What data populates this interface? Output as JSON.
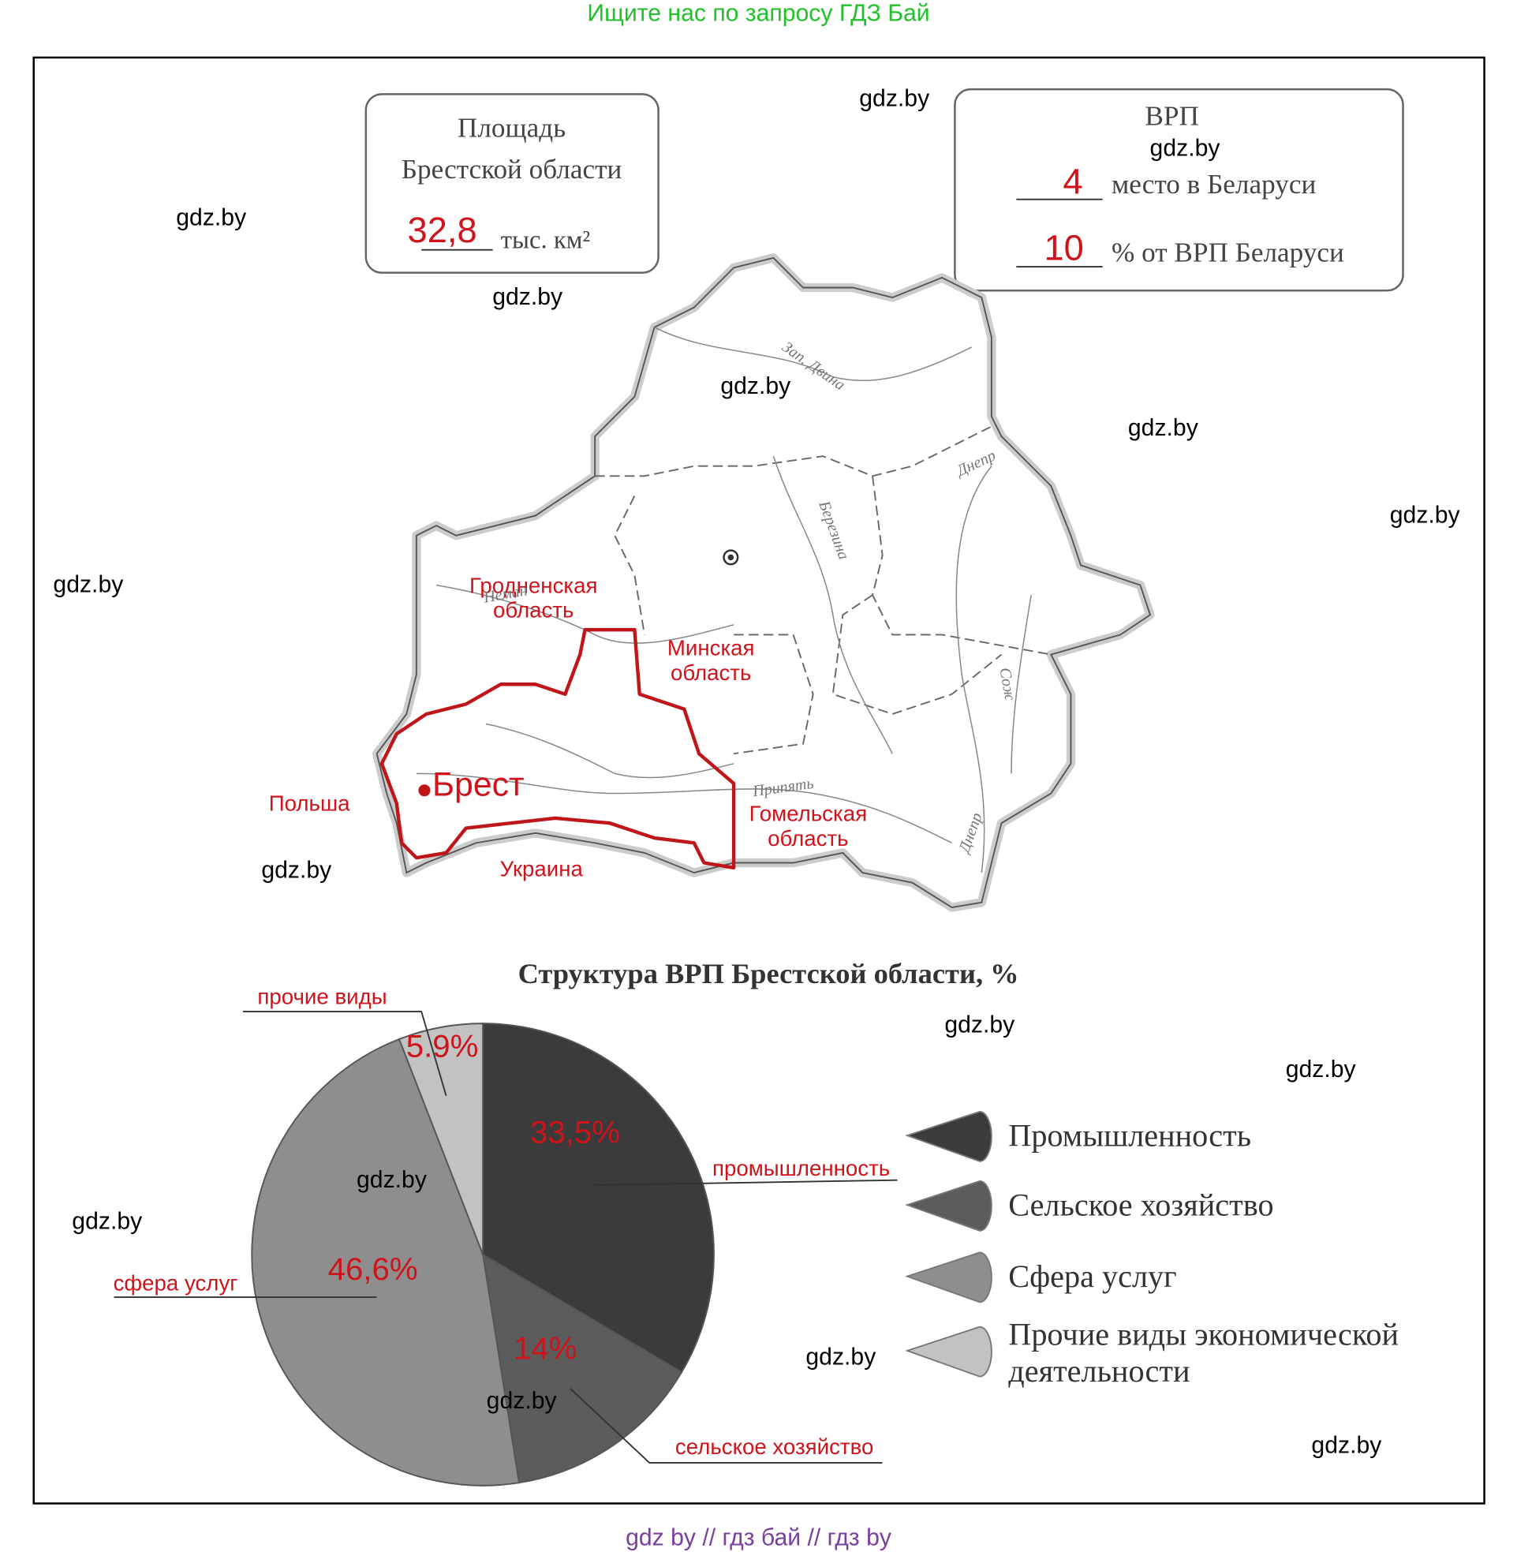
{
  "header": "Ищите нас по запросу ГДЗ Бай",
  "area_box": {
    "title_line1": "Площадь",
    "title_line2": "Брестской области",
    "value": "32,8",
    "unit": "тыс. км²"
  },
  "grp_box": {
    "title": "ВРП",
    "rank": "4",
    "rank_text": "место в Беларуси",
    "share": "10",
    "share_text": "% от ВРП Беларуси"
  },
  "map": {
    "regions": [
      "Гродненская область",
      "Минская область",
      "Гомельская область"
    ],
    "city": "Брест",
    "countries": [
      "Польша",
      "Украина"
    ],
    "rivers": [
      "Зап. Двина",
      "Березина",
      "Днепр",
      "Неман",
      "Сож",
      "Припять",
      "Днепр"
    ]
  },
  "chart_data": {
    "type": "pie",
    "title": "Структура ВРП Брестской области, %",
    "categories": [
      "Промышленность",
      "Сельское хозяйство",
      "Сфера услуг",
      "Прочие виды экономической деятельности"
    ],
    "values": [
      33.5,
      14,
      46.6,
      5.9
    ],
    "value_labels": [
      "33,5%",
      "14%",
      "46,6%",
      "5.9%"
    ],
    "colors": [
      "#3b3b3b",
      "#5c5c5c",
      "#8e8e8e",
      "#c2c2c2"
    ],
    "callouts": [
      "промышленность",
      "сельское хозяйство",
      "сфера услуг",
      "прочие виды"
    ]
  },
  "watermarks": [
    "gdz.by",
    "gdz.by",
    "gdz.by",
    "gdz.by",
    "gdz.by",
    "gdz.by",
    "gdz.by",
    "gdz.by",
    "gdz.by",
    "gdz.by",
    "gdz.by",
    "gdz.by",
    "gdz.by",
    "gdz.by",
    "gdz.by",
    "gdz.by"
  ],
  "footer": "gdz by  //  гдз бай  //  гдз by"
}
